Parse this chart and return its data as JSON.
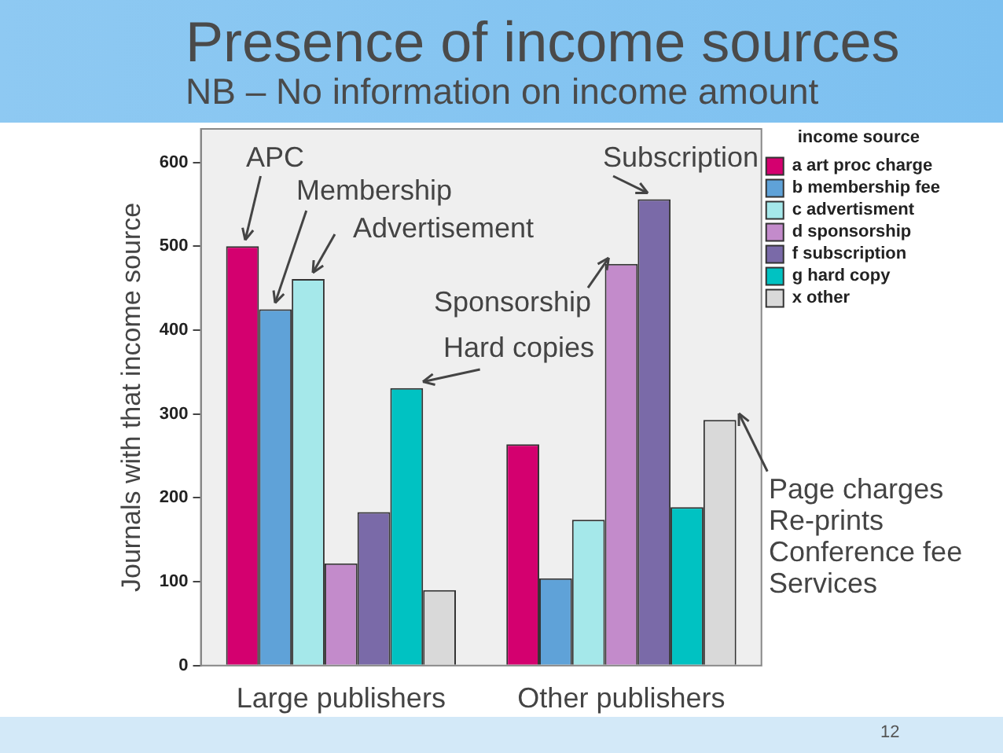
{
  "chart_data": {
    "type": "bar",
    "title": "Presence of income sources",
    "subtitle": "NB – No information on income amount",
    "ylabel": "Journals with that income source",
    "legend_title": "income source",
    "legend": "top right",
    "grid": false,
    "categories": [
      "Large publishers",
      "Other publishers"
    ],
    "ylim": [
      0,
      640
    ],
    "yticks": [
      0,
      100,
      200,
      300,
      400,
      500,
      600
    ],
    "series": [
      {
        "name": "a art proc charge",
        "color": "#d4006f",
        "values": [
          500,
          264
        ]
      },
      {
        "name": "b membership fee",
        "color": "#5fa2d8",
        "values": [
          425,
          104
        ]
      },
      {
        "name": "c advertisment",
        "color": "#a5e8ea",
        "values": [
          461,
          174
        ]
      },
      {
        "name": "d sponsorship",
        "color": "#c38bcb",
        "values": [
          122,
          479
        ]
      },
      {
        "name": "f subscription",
        "color": "#7a6aa8",
        "values": [
          183,
          556
        ]
      },
      {
        "name": "g hard copy",
        "color": "#00c2c2",
        "values": [
          331,
          189
        ]
      },
      {
        "name": "x other",
        "color": "#d9d9d9",
        "values": [
          90,
          293
        ]
      }
    ],
    "annotations": [
      "APC",
      "Membership",
      "Advertisement",
      "Subscription",
      "Sponsorship",
      "Hard copies",
      "Page charges\nRe-prints\nConference fee\nServices",
      "12"
    ]
  }
}
